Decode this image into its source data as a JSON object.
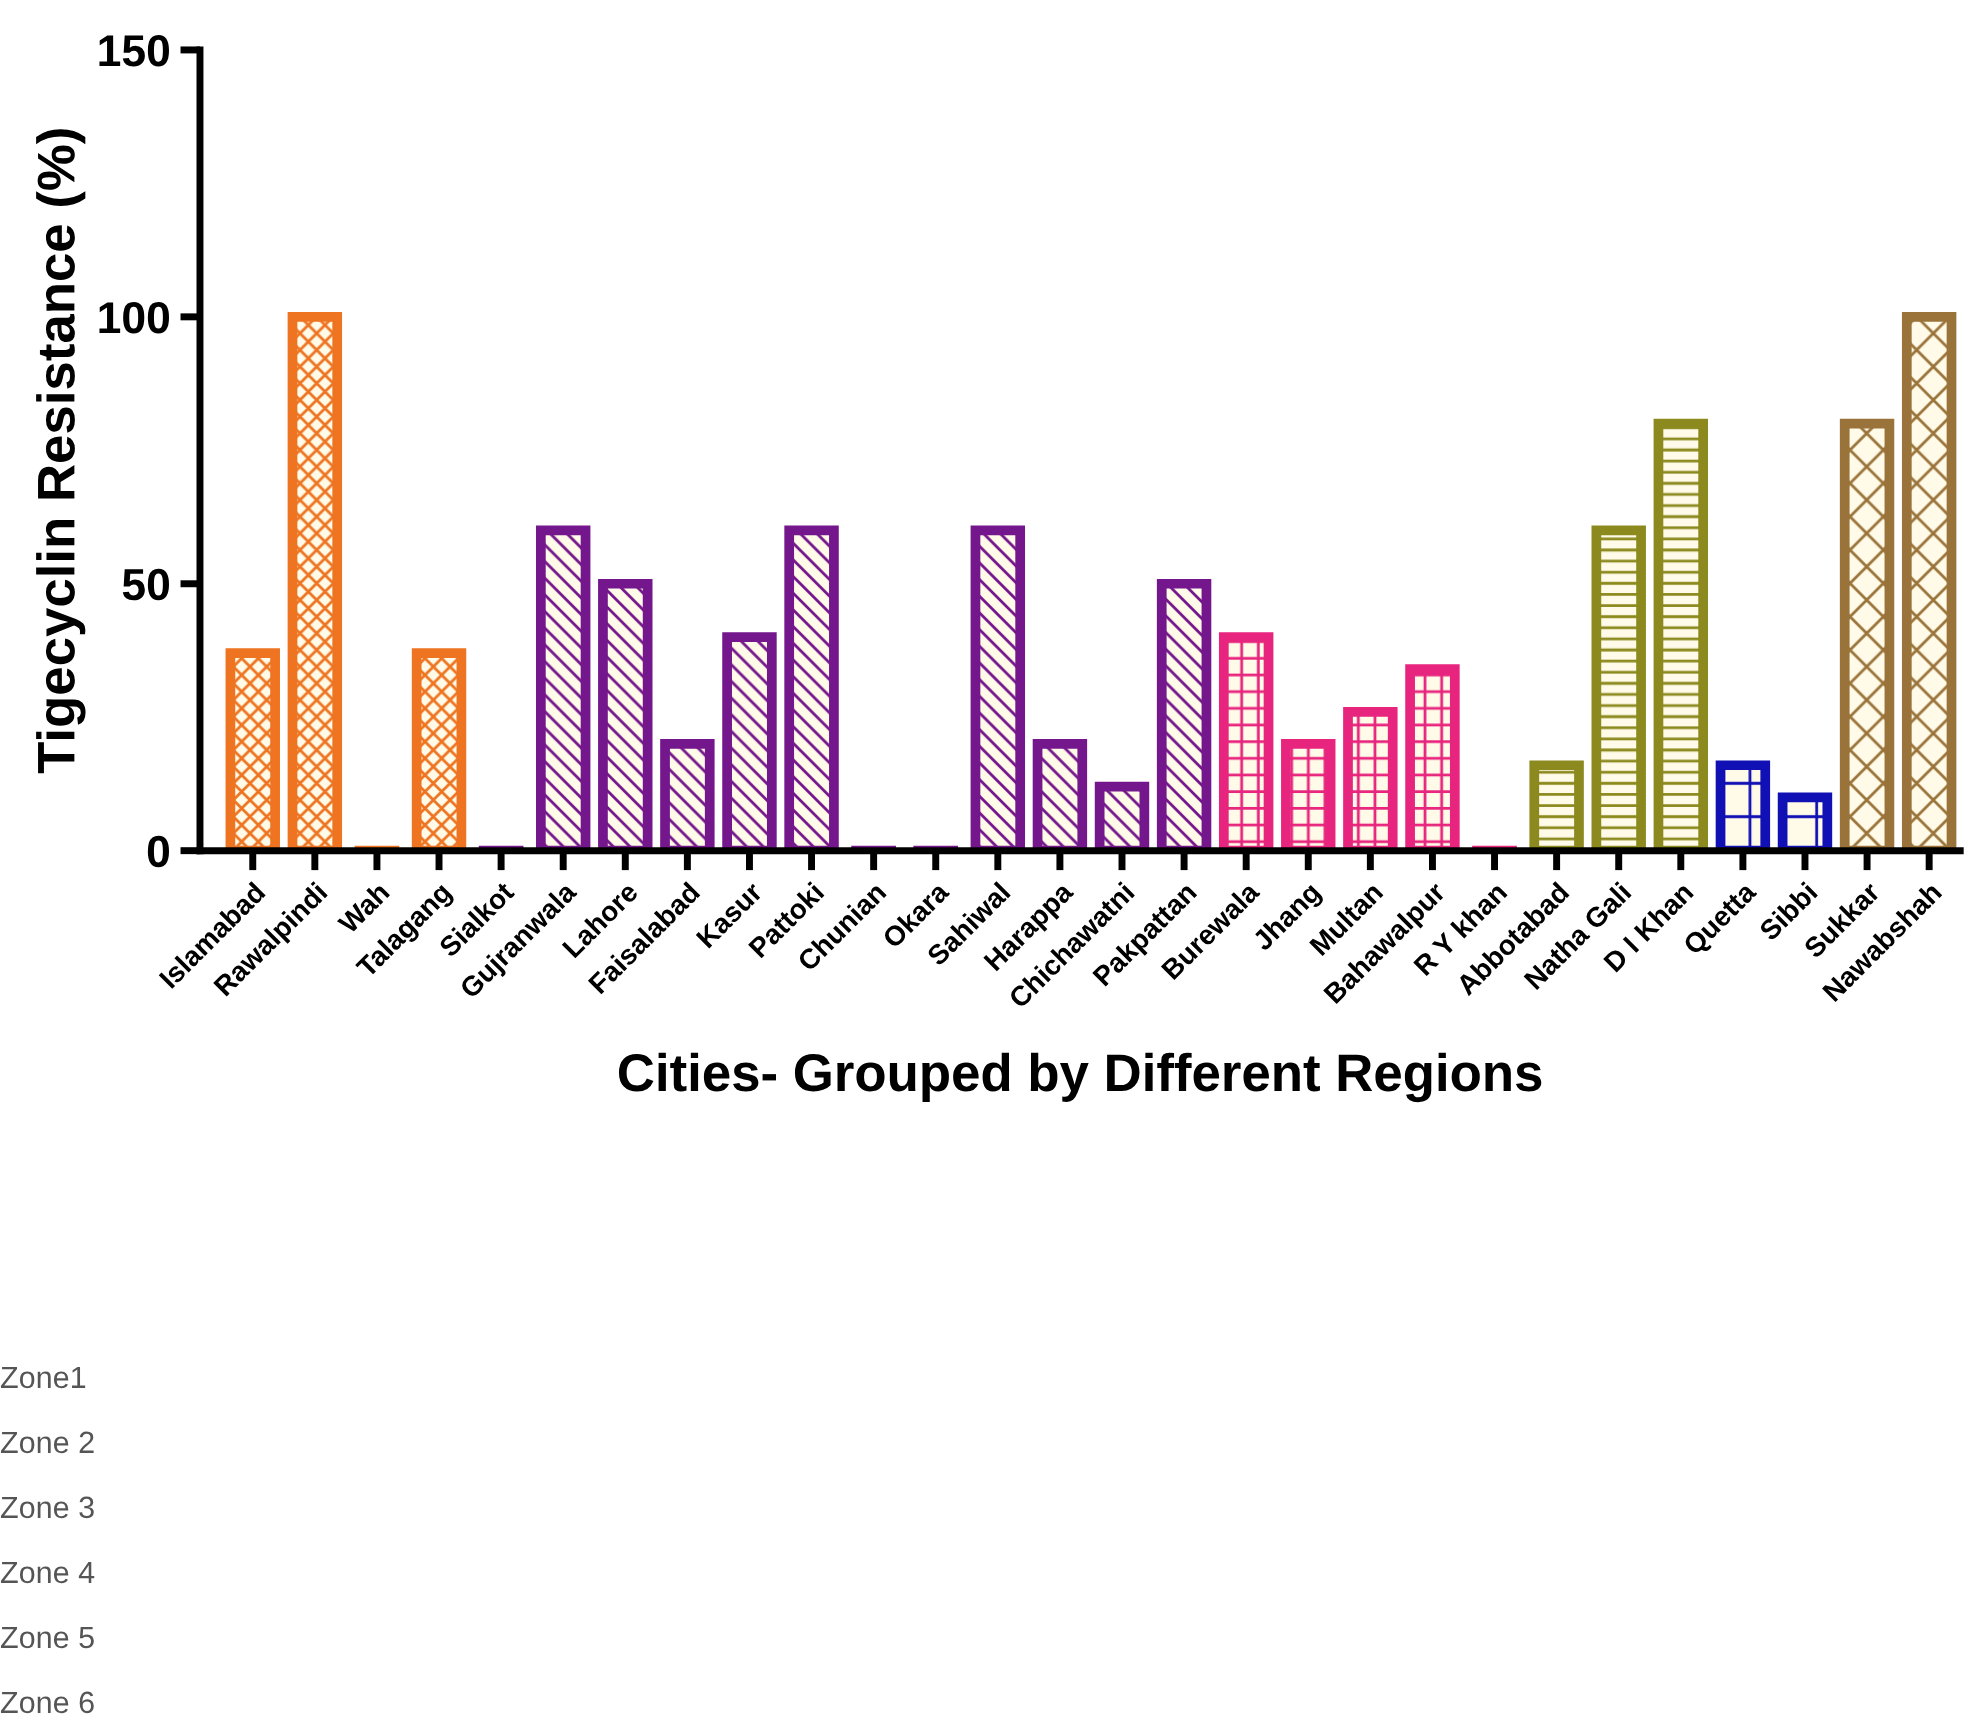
{
  "chart_data": {
    "type": "bar",
    "xlabel": "Cities- Grouped by Different Regions",
    "ylabel": "Tigecyclin Resistance (%)",
    "categories": [
      "Islamabad",
      "Rawalpindi",
      "Wah",
      "Talagang",
      "Sialkot",
      "Gujranwala",
      "Lahore",
      "Faisalabad",
      "Kasur",
      "Pattoki",
      "Chunian",
      "Okara",
      "Sahiwal",
      "Harappa",
      "Chichawatni",
      "Pakpattan",
      "Burewala",
      "Jhang",
      "Multan",
      "Bahawalpur",
      "R Y khan",
      "Abbotabad",
      "Natha Gali",
      "D I Khan",
      "Quetta",
      "Sibbi",
      "Sukkar",
      "Nawabshah"
    ],
    "values": [
      37,
      100,
      0,
      37,
      0,
      60,
      50,
      20,
      40,
      60,
      0,
      0,
      60,
      20,
      12,
      50,
      40,
      20,
      26,
      34,
      0,
      16,
      60,
      80,
      16,
      10,
      80,
      100
    ],
    "colors": [
      "#ee7421",
      "#ee7421",
      "#ee7421",
      "#ee7421",
      "#74168c",
      "#74168c",
      "#74168c",
      "#74168c",
      "#74168c",
      "#74168c",
      "#74168c",
      "#74168c",
      "#74168c",
      "#74168c",
      "#74168c",
      "#74168c",
      "#e8257e",
      "#e8257e",
      "#e8257e",
      "#e8257e",
      "#e8257e",
      "#8c8a1e",
      "#8c8a1e",
      "#8c8a1e",
      "#1010b4",
      "#1010b4",
      "#9a733a",
      "#9a733a"
    ],
    "ylim": [
      0,
      150
    ],
    "yticks": [
      0,
      50,
      100,
      150
    ],
    "annotations": [
      "Zone1",
      "Zone 2",
      "Zone 3",
      "Zone 4",
      "Zone 5",
      "Zone 6"
    ]
  }
}
